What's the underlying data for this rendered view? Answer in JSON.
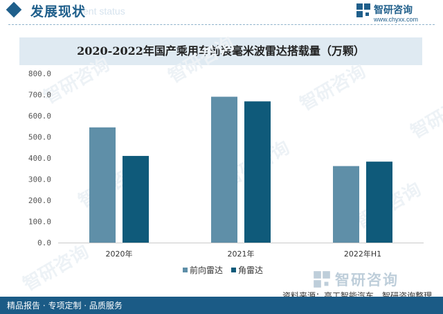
{
  "header": {
    "section_title": "发展现状",
    "section_subtitle": "ent status",
    "logo_name": "智研咨询",
    "logo_url": "www.chyxx.com"
  },
  "watermark": {
    "brand": "智研咨询"
  },
  "chart_data": {
    "type": "bar",
    "title": "2020-2022年国产乘用车前装毫米波雷达搭载量（万颗）",
    "categories": [
      "2020年",
      "2021年",
      "2022年H1"
    ],
    "series": [
      {
        "name": "前向雷达",
        "values": [
          545,
          690,
          362
        ],
        "color": "#5f8fa8"
      },
      {
        "name": "角雷达",
        "values": [
          410,
          668,
          383
        ],
        "color": "#0f5a7a"
      }
    ],
    "yticks": [
      "0.0",
      "100.0",
      "200.0",
      "300.0",
      "400.0",
      "500.0",
      "600.0",
      "700.0",
      "800.0"
    ],
    "ylim": [
      0,
      800
    ],
    "xlabel": "",
    "ylabel": "",
    "grid": false,
    "legend_position": "bottom"
  },
  "footer": {
    "left_text": "精品报告 · 专项定制 · 品质服务",
    "source": "资料来源：高工智能汽车、智研咨询整理"
  }
}
